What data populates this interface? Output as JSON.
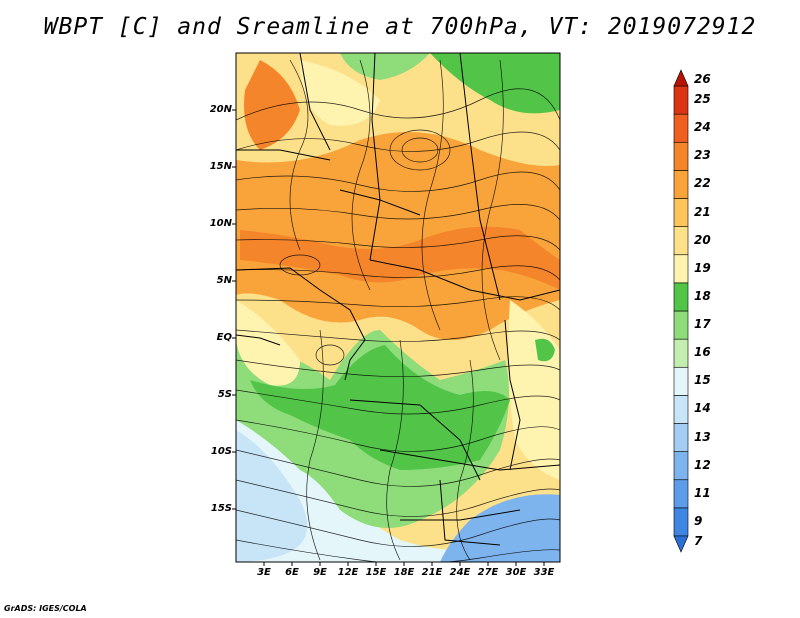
{
  "title": "WBPT [C] and Sreamline at 700hPa, VT: 2019072912",
  "credit": "GrADS: IGES/COLA",
  "lat_labels": [
    "20N",
    "15N",
    "10N",
    "5N",
    "EQ",
    "5S",
    "10S",
    "15S"
  ],
  "lon_labels": [
    "3E",
    "6E",
    "9E",
    "12E",
    "15E",
    "18E",
    "21E",
    "24E",
    "27E",
    "30E",
    "33E"
  ],
  "colorbar": {
    "labels": [
      "7",
      "9",
      "11",
      "12",
      "13",
      "14",
      "15",
      "16",
      "17",
      "18",
      "19",
      "20",
      "21",
      "22",
      "23",
      "24",
      "25",
      "26"
    ],
    "colors": [
      "#2a6fd6",
      "#3e86e2",
      "#5c9ce8",
      "#7eb4ee",
      "#a4cdf3",
      "#c8e5f7",
      "#e4f6fa",
      "#c4edb0",
      "#8fdc7a",
      "#52c548",
      "#fff3b0",
      "#fde08a",
      "#fcc55c",
      "#f9a43a",
      "#f5852a",
      "#ef5f20",
      "#dc3515",
      "#b51405"
    ]
  },
  "map_colors": {
    "cool_blue": "#7eb4ee",
    "pale_blue": "#c8e5f7",
    "light_green": "#8fdc7a",
    "green": "#52c548",
    "yellow": "#fff3b0",
    "orange": "#f9a43a",
    "dark_orange": "#f5852a"
  }
}
